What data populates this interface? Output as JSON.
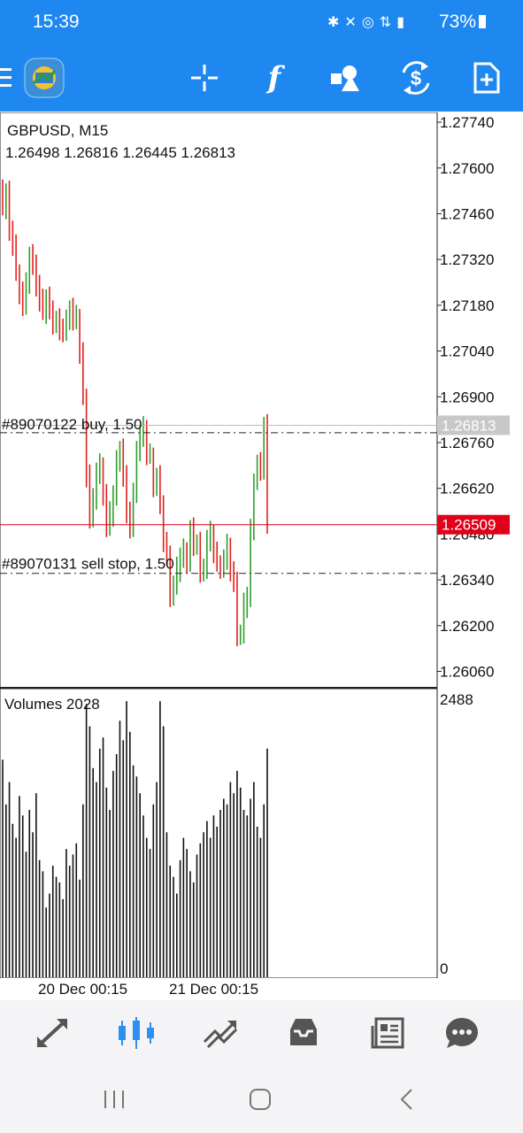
{
  "status": {
    "time": "15:39",
    "icons": [
      "bluetooth-icon",
      "mute-icon",
      "hotspot-icon",
      "4g-icon",
      "signal-icon"
    ],
    "battery": "73%"
  },
  "toolbar": {
    "accent": "#1e88f0",
    "buttons": [
      "menu-icon",
      "metatrader-logo",
      "crosshair-icon",
      "indicators-icon",
      "objects-icon",
      "trade-icon",
      "new-order-icon"
    ],
    "f_glyph": "f",
    "dollar_glyph": "$"
  },
  "chart": {
    "symbol_label": "GBPUSD, M15",
    "ohlc_label": "1.26498 1.26816 1.26445 1.26813",
    "price_axis": [
      "1.27740",
      "1.27600",
      "1.27460",
      "1.27320",
      "1.27180",
      "1.27040",
      "1.26900",
      "1.26760",
      "1.26620",
      "1.26480",
      "1.26340",
      "1.26200",
      "1.26060"
    ],
    "ask_tag": "1.26813",
    "bid_tag": "1.26509",
    "order_buy_label": "#89070122 buy, 1.50",
    "order_sell_label": "#89070131 sell stop, 1.50",
    "order_buy_price": 1.2679,
    "order_sell_price": 1.2636,
    "bid_color": "#e0001a",
    "bull_color": "#2e9e2e",
    "bear_color": "#e0201e",
    "volumes_label": "Volumes 2028",
    "volume_axis_max": "2488",
    "volume_axis_min": "0",
    "time_labels": [
      "20 Dec 00:15",
      "21 Dec 00:15"
    ]
  },
  "chart_data": {
    "type": "candlestick",
    "symbol": "GBPUSD",
    "timeframe": "M15",
    "ylim": [
      1.2601,
      1.2777
    ],
    "close_approx": [
      1.2748,
      1.2752,
      1.2741,
      1.2736,
      1.2728,
      1.2722,
      1.2718,
      1.2724,
      1.2733,
      1.2731,
      1.2724,
      1.2719,
      1.2716,
      1.272,
      1.2717,
      1.2712,
      1.2713,
      1.2711,
      1.271,
      1.2713,
      1.2717,
      1.2714,
      1.2714,
      1.2703,
      1.269,
      1.2666,
      1.2653,
      1.2658,
      1.2667,
      1.2669,
      1.266,
      1.265,
      1.2654,
      1.266,
      1.267,
      1.2674,
      1.2665,
      1.2655,
      1.265,
      1.266,
      1.2674,
      1.2678,
      1.268,
      1.2672,
      1.2672,
      1.2663,
      1.2665,
      1.2657,
      1.2645,
      1.2642,
      1.2629,
      1.2632,
      1.2637,
      1.2641,
      1.2643,
      1.2639,
      1.2649,
      1.2645,
      1.2645,
      1.2636,
      1.2638,
      1.2646,
      1.2648,
      1.2642,
      1.2639,
      1.2638,
      1.264,
      1.2644,
      1.2636,
      1.2634,
      1.2617,
      1.2617,
      1.2626,
      1.2629,
      1.2649,
      1.2664,
      1.2669,
      1.2668,
      1.2681,
      1.2651
    ],
    "volume_max": 2488
  }
}
